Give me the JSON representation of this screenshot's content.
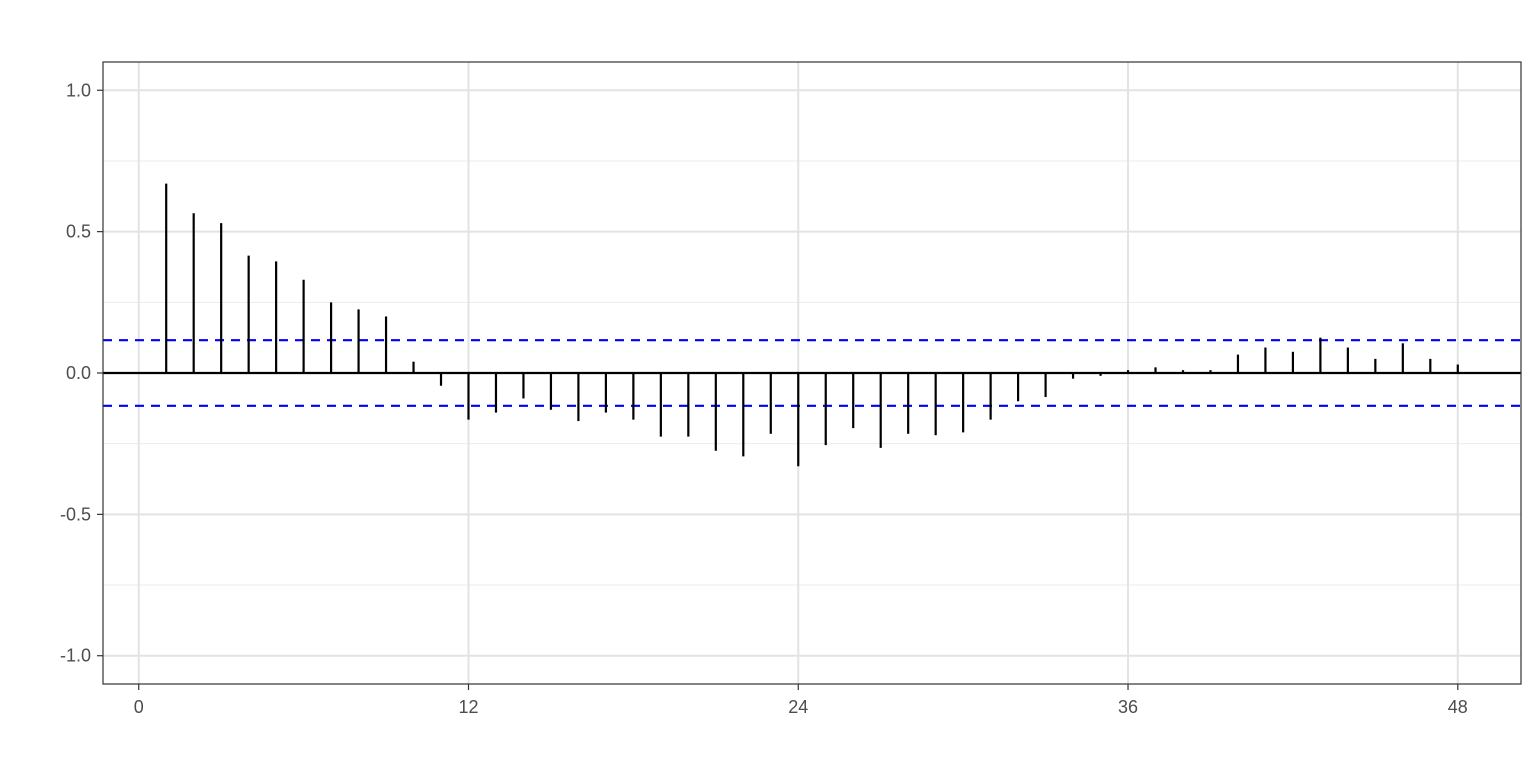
{
  "chart_data": {
    "type": "bar",
    "title": "",
    "xlabel": "",
    "ylabel": "",
    "xlim": [
      -1.3,
      50.3
    ],
    "ylim": [
      -1.1,
      1.1
    ],
    "x_ticks": [
      0,
      12,
      24,
      36,
      48
    ],
    "x_tick_labels": [
      "0",
      "12",
      "24",
      "36",
      "48"
    ],
    "y_ticks": [
      -1.0,
      -0.5,
      0.0,
      0.5,
      1.0
    ],
    "y_tick_labels": [
      "-1.0",
      "-0.5",
      "0.0",
      "0.5",
      "1.0"
    ],
    "y_minor_ticks": [
      -0.75,
      -0.25,
      0.25,
      0.75
    ],
    "grid": true,
    "confidence_band": 0.116,
    "confidence_color": "#0000ff",
    "bar_color": "#000000",
    "series": [
      {
        "lags": [
          1,
          2,
          3,
          4,
          5,
          6,
          7,
          8,
          9,
          10,
          11,
          12,
          13,
          14,
          15,
          16,
          17,
          18,
          19,
          20,
          21,
          22,
          23,
          24,
          25,
          26,
          27,
          28,
          29,
          30,
          31,
          32,
          33,
          34,
          35,
          36,
          37,
          38,
          39,
          40,
          41,
          42,
          43,
          44,
          45,
          46,
          47,
          48
        ],
        "values": [
          0.67,
          0.565,
          0.53,
          0.415,
          0.395,
          0.33,
          0.25,
          0.225,
          0.2,
          0.04,
          -0.045,
          -0.165,
          -0.14,
          -0.09,
          -0.13,
          -0.17,
          -0.14,
          -0.165,
          -0.225,
          -0.225,
          -0.275,
          -0.295,
          -0.215,
          -0.33,
          -0.255,
          -0.195,
          -0.265,
          -0.215,
          -0.22,
          -0.21,
          -0.165,
          -0.1,
          -0.085,
          -0.02,
          -0.01,
          0.01,
          0.02,
          0.01,
          0.01,
          0.065,
          0.09,
          0.075,
          0.125,
          0.09,
          0.05,
          0.105,
          0.05,
          0.03
        ]
      }
    ]
  }
}
